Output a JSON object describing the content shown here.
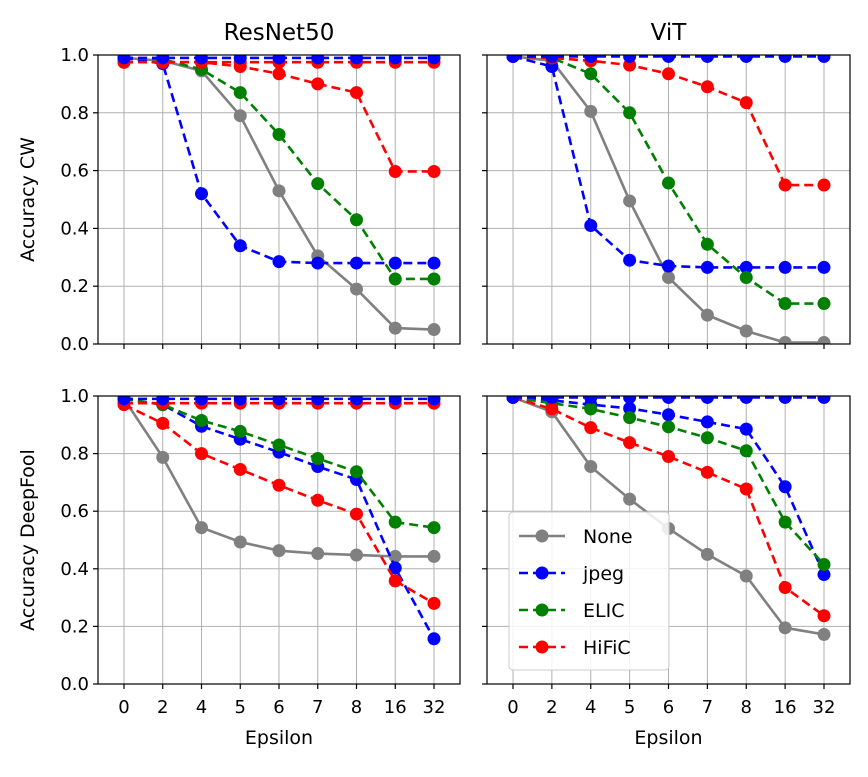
{
  "chart_data": {
    "type": "line",
    "x_label": "Epsilon",
    "categories": [
      "0",
      "2",
      "4",
      "5",
      "6",
      "7",
      "8",
      "16",
      "32"
    ],
    "ylim": [
      0,
      1
    ],
    "y_ticks": [
      "0.0",
      "0.2",
      "0.4",
      "0.6",
      "0.8",
      "1.0"
    ],
    "grid": true,
    "series_styles": {
      "None": {
        "color": "#808080",
        "dash": "solid"
      },
      "jpeg": {
        "color": "#0000ff",
        "dash": "dashed"
      },
      "ELIC": {
        "color": "#008000",
        "dash": "dashed"
      },
      "HiFiC": {
        "color": "#ff0000",
        "dash": "dashed"
      }
    },
    "legend": {
      "placement": "lower-left",
      "panel": "vit-deepfool",
      "entries": [
        "None",
        "jpeg",
        "ELIC",
        "HiFiC"
      ]
    },
    "panels": [
      {
        "id": "resnet-cw",
        "title": "ResNet50",
        "ylabel": "Accuracy CW",
        "series": [
          {
            "name": "None",
            "values": [
              0.99,
              0.98,
              0.945,
              0.79,
              0.53,
              0.305,
              0.19,
              0.055,
              0.05
            ]
          },
          {
            "name": "jpeg",
            "values": [
              0.99,
              0.97,
              0.52,
              0.34,
              0.285,
              0.28,
              0.28,
              0.28,
              0.28
            ]
          },
          {
            "name": "ELIC",
            "values": [
              0.99,
              0.985,
              0.95,
              0.87,
              0.725,
              0.555,
              0.43,
              0.225,
              0.225
            ]
          },
          {
            "name": "HiFiC",
            "values": [
              0.975,
              0.975,
              0.975,
              0.96,
              0.935,
              0.9,
              0.87,
              0.597,
              0.597
            ]
          },
          {
            "name": "HiFiC-flat",
            "legend": false,
            "values": [
              0.975,
              0.975,
              0.975,
              0.975,
              0.975,
              0.975,
              0.975,
              0.975,
              0.975
            ]
          },
          {
            "name": "jpeg-flat",
            "legend": false,
            "values": [
              0.99,
              0.99,
              0.99,
              0.99,
              0.99,
              0.99,
              0.99,
              0.99,
              0.99
            ]
          }
        ]
      },
      {
        "id": "vit-cw",
        "title": "ViT",
        "ylabel": "",
        "series": [
          {
            "name": "None",
            "values": [
              0.995,
              0.98,
              0.805,
              0.495,
              0.23,
              0.1,
              0.045,
              0.005,
              0.005
            ]
          },
          {
            "name": "jpeg",
            "values": [
              0.995,
              0.96,
              0.41,
              0.29,
              0.27,
              0.265,
              0.265,
              0.265,
              0.265
            ]
          },
          {
            "name": "ELIC",
            "values": [
              0.995,
              0.99,
              0.935,
              0.8,
              0.557,
              0.345,
              0.23,
              0.14,
              0.14
            ]
          },
          {
            "name": "HiFiC",
            "values": [
              0.995,
              0.99,
              0.98,
              0.965,
              0.935,
              0.89,
              0.835,
              0.55,
              0.55
            ]
          },
          {
            "name": "jpeg-flat",
            "legend": false,
            "values": [
              0.995,
              0.995,
              0.995,
              0.995,
              0.995,
              0.995,
              0.995,
              0.995,
              0.995
            ]
          }
        ]
      },
      {
        "id": "resnet-deepfool",
        "title": "",
        "ylabel": "Accuracy DeepFool",
        "series": [
          {
            "name": "None",
            "values": [
              0.99,
              0.787,
              0.543,
              0.493,
              0.463,
              0.453,
              0.448,
              0.443,
              0.443
            ]
          },
          {
            "name": "jpeg",
            "values": [
              0.99,
              0.97,
              0.895,
              0.85,
              0.805,
              0.755,
              0.71,
              0.403,
              0.157
            ]
          },
          {
            "name": "ELIC",
            "values": [
              0.99,
              0.97,
              0.915,
              0.877,
              0.83,
              0.783,
              0.737,
              0.562,
              0.543
            ]
          },
          {
            "name": "HiFiC",
            "values": [
              0.97,
              0.905,
              0.8,
              0.745,
              0.69,
              0.638,
              0.59,
              0.358,
              0.28
            ]
          },
          {
            "name": "HiFiC-flat",
            "legend": false,
            "values": [
              0.975,
              0.975,
              0.975,
              0.975,
              0.975,
              0.975,
              0.975,
              0.975,
              0.975
            ]
          },
          {
            "name": "jpeg-flat",
            "legend": false,
            "values": [
              0.99,
              0.99,
              0.99,
              0.99,
              0.99,
              0.99,
              0.99,
              0.99,
              0.99
            ]
          }
        ]
      },
      {
        "id": "vit-deepfool",
        "title": "",
        "ylabel": "",
        "series": [
          {
            "name": "None",
            "values": [
              0.995,
              0.945,
              0.755,
              0.642,
              0.54,
              0.45,
              0.375,
              0.195,
              0.172
            ]
          },
          {
            "name": "jpeg",
            "values": [
              0.995,
              0.985,
              0.97,
              0.957,
              0.935,
              0.91,
              0.885,
              0.685,
              0.38
            ]
          },
          {
            "name": "ELIC",
            "values": [
              0.995,
              0.975,
              0.955,
              0.925,
              0.893,
              0.855,
              0.81,
              0.562,
              0.415
            ]
          },
          {
            "name": "HiFiC",
            "values": [
              0.995,
              0.955,
              0.89,
              0.838,
              0.79,
              0.735,
              0.677,
              0.335,
              0.237
            ]
          },
          {
            "name": "jpeg-flat",
            "legend": false,
            "values": [
              0.995,
              0.995,
              0.995,
              0.995,
              0.995,
              0.995,
              0.995,
              0.995,
              0.995
            ]
          }
        ]
      }
    ]
  }
}
